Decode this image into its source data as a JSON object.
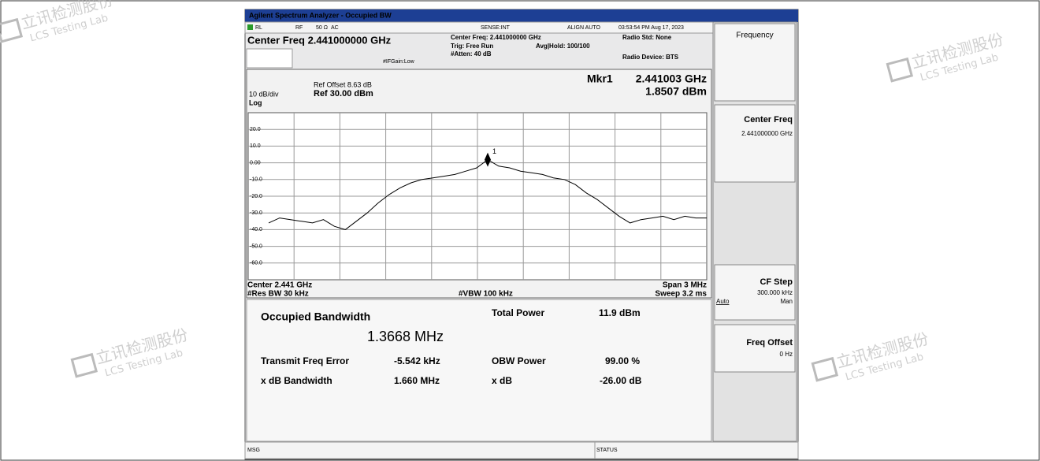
{
  "window_title": "Agilent Spectrum Analyzer - Occupied BW",
  "status_bar": {
    "rl": "RL",
    "rf": "RF",
    "impedance": "50 Ω",
    "coupling": "AC",
    "sense": "SENSE:INT",
    "align": "ALIGN AUTO",
    "timestamp": "03:53:54 PM Aug 17, 2023"
  },
  "header": {
    "center_freq": "Center Freq 2.441000000 GHz",
    "if_gain": "#IFGain:Low",
    "center_info": "Center Freq: 2.441000000 GHz",
    "trig": "Trig: Free Run",
    "atten": "#Atten: 40 dB",
    "avg_hold": "Avg|Hold: 100/100",
    "radio_std": "Radio Std: None",
    "radio_device": "Radio Device: BTS"
  },
  "chart_data": {
    "type": "line",
    "ref_offset": "Ref Offset 8.63 dB",
    "ref_level": "Ref 30.00 dBm",
    "scale": "10 dB/div",
    "scale_type": "Log",
    "marker": {
      "name": "Mkr1",
      "frequency": "2.441003 GHz",
      "value": 1.8507,
      "value_label": "1.8507 dBm",
      "number": "1"
    },
    "ylim": [
      -70,
      30
    ],
    "yticks": [
      {
        "value": 20,
        "label": "20.0"
      },
      {
        "value": 10,
        "label": "10.0"
      },
      {
        "value": 0,
        "label": "0.00"
      },
      {
        "value": -10,
        "label": "-10.0"
      },
      {
        "value": -20,
        "label": "-20.0"
      },
      {
        "value": -30,
        "label": "-30.0"
      },
      {
        "value": -40,
        "label": "-40.0"
      },
      {
        "value": -50,
        "label": "-50.0"
      },
      {
        "value": -60,
        "label": "-60.0"
      }
    ],
    "values": [
      -36,
      -33,
      -34,
      -35,
      -36,
      -34,
      -38,
      -40,
      -35,
      -30,
      -24,
      -19,
      -15,
      -12,
      -10,
      -9,
      -8,
      -7,
      -5,
      -3,
      1.9,
      -2,
      -3,
      -5,
      -6,
      -7,
      -9,
      -10,
      -13,
      -18,
      -22,
      -27,
      -32,
      -36,
      -34,
      -33,
      -32,
      -34,
      -32,
      -33,
      -33
    ],
    "color": "#000000",
    "grid": true
  },
  "footer": {
    "center": "Center 2.441 GHz",
    "res_bw": "#Res BW 30 kHz",
    "vbw": "#VBW 100 kHz",
    "span": "Span 3 MHz",
    "sweep": "Sweep 3.2 ms"
  },
  "results": {
    "obw_label": "Occupied Bandwidth",
    "obw_value": "1.3668 MHz",
    "total_power_label": "Total Power",
    "total_power": "11.9 dBm",
    "tfe_label": "Transmit Freq Error",
    "tfe": "-5.542 kHz",
    "obw_power_label": "OBW Power",
    "obw_power": "99.00 %",
    "xdb_bw_label": "x dB Bandwidth",
    "xdb_bw": "1.660 MHz",
    "xdb_label": "x dB",
    "xdb": "-26.00 dB"
  },
  "softkeys": {
    "menu": "Frequency",
    "center_freq": "Center Freq",
    "center_freq_value": "2.441000000 GHz",
    "cf_step": "CF Step",
    "cf_step_value": "300.000 kHz",
    "auto": "Auto",
    "man": "Man",
    "freq_offset": "Freq Offset",
    "freq_offset_value": "0 Hz"
  },
  "bottom_bar": {
    "msg": "MSG",
    "status": "STATUS"
  },
  "watermark": {
    "cn": "立讯检测股份",
    "en": "LCS Testing Lab"
  }
}
